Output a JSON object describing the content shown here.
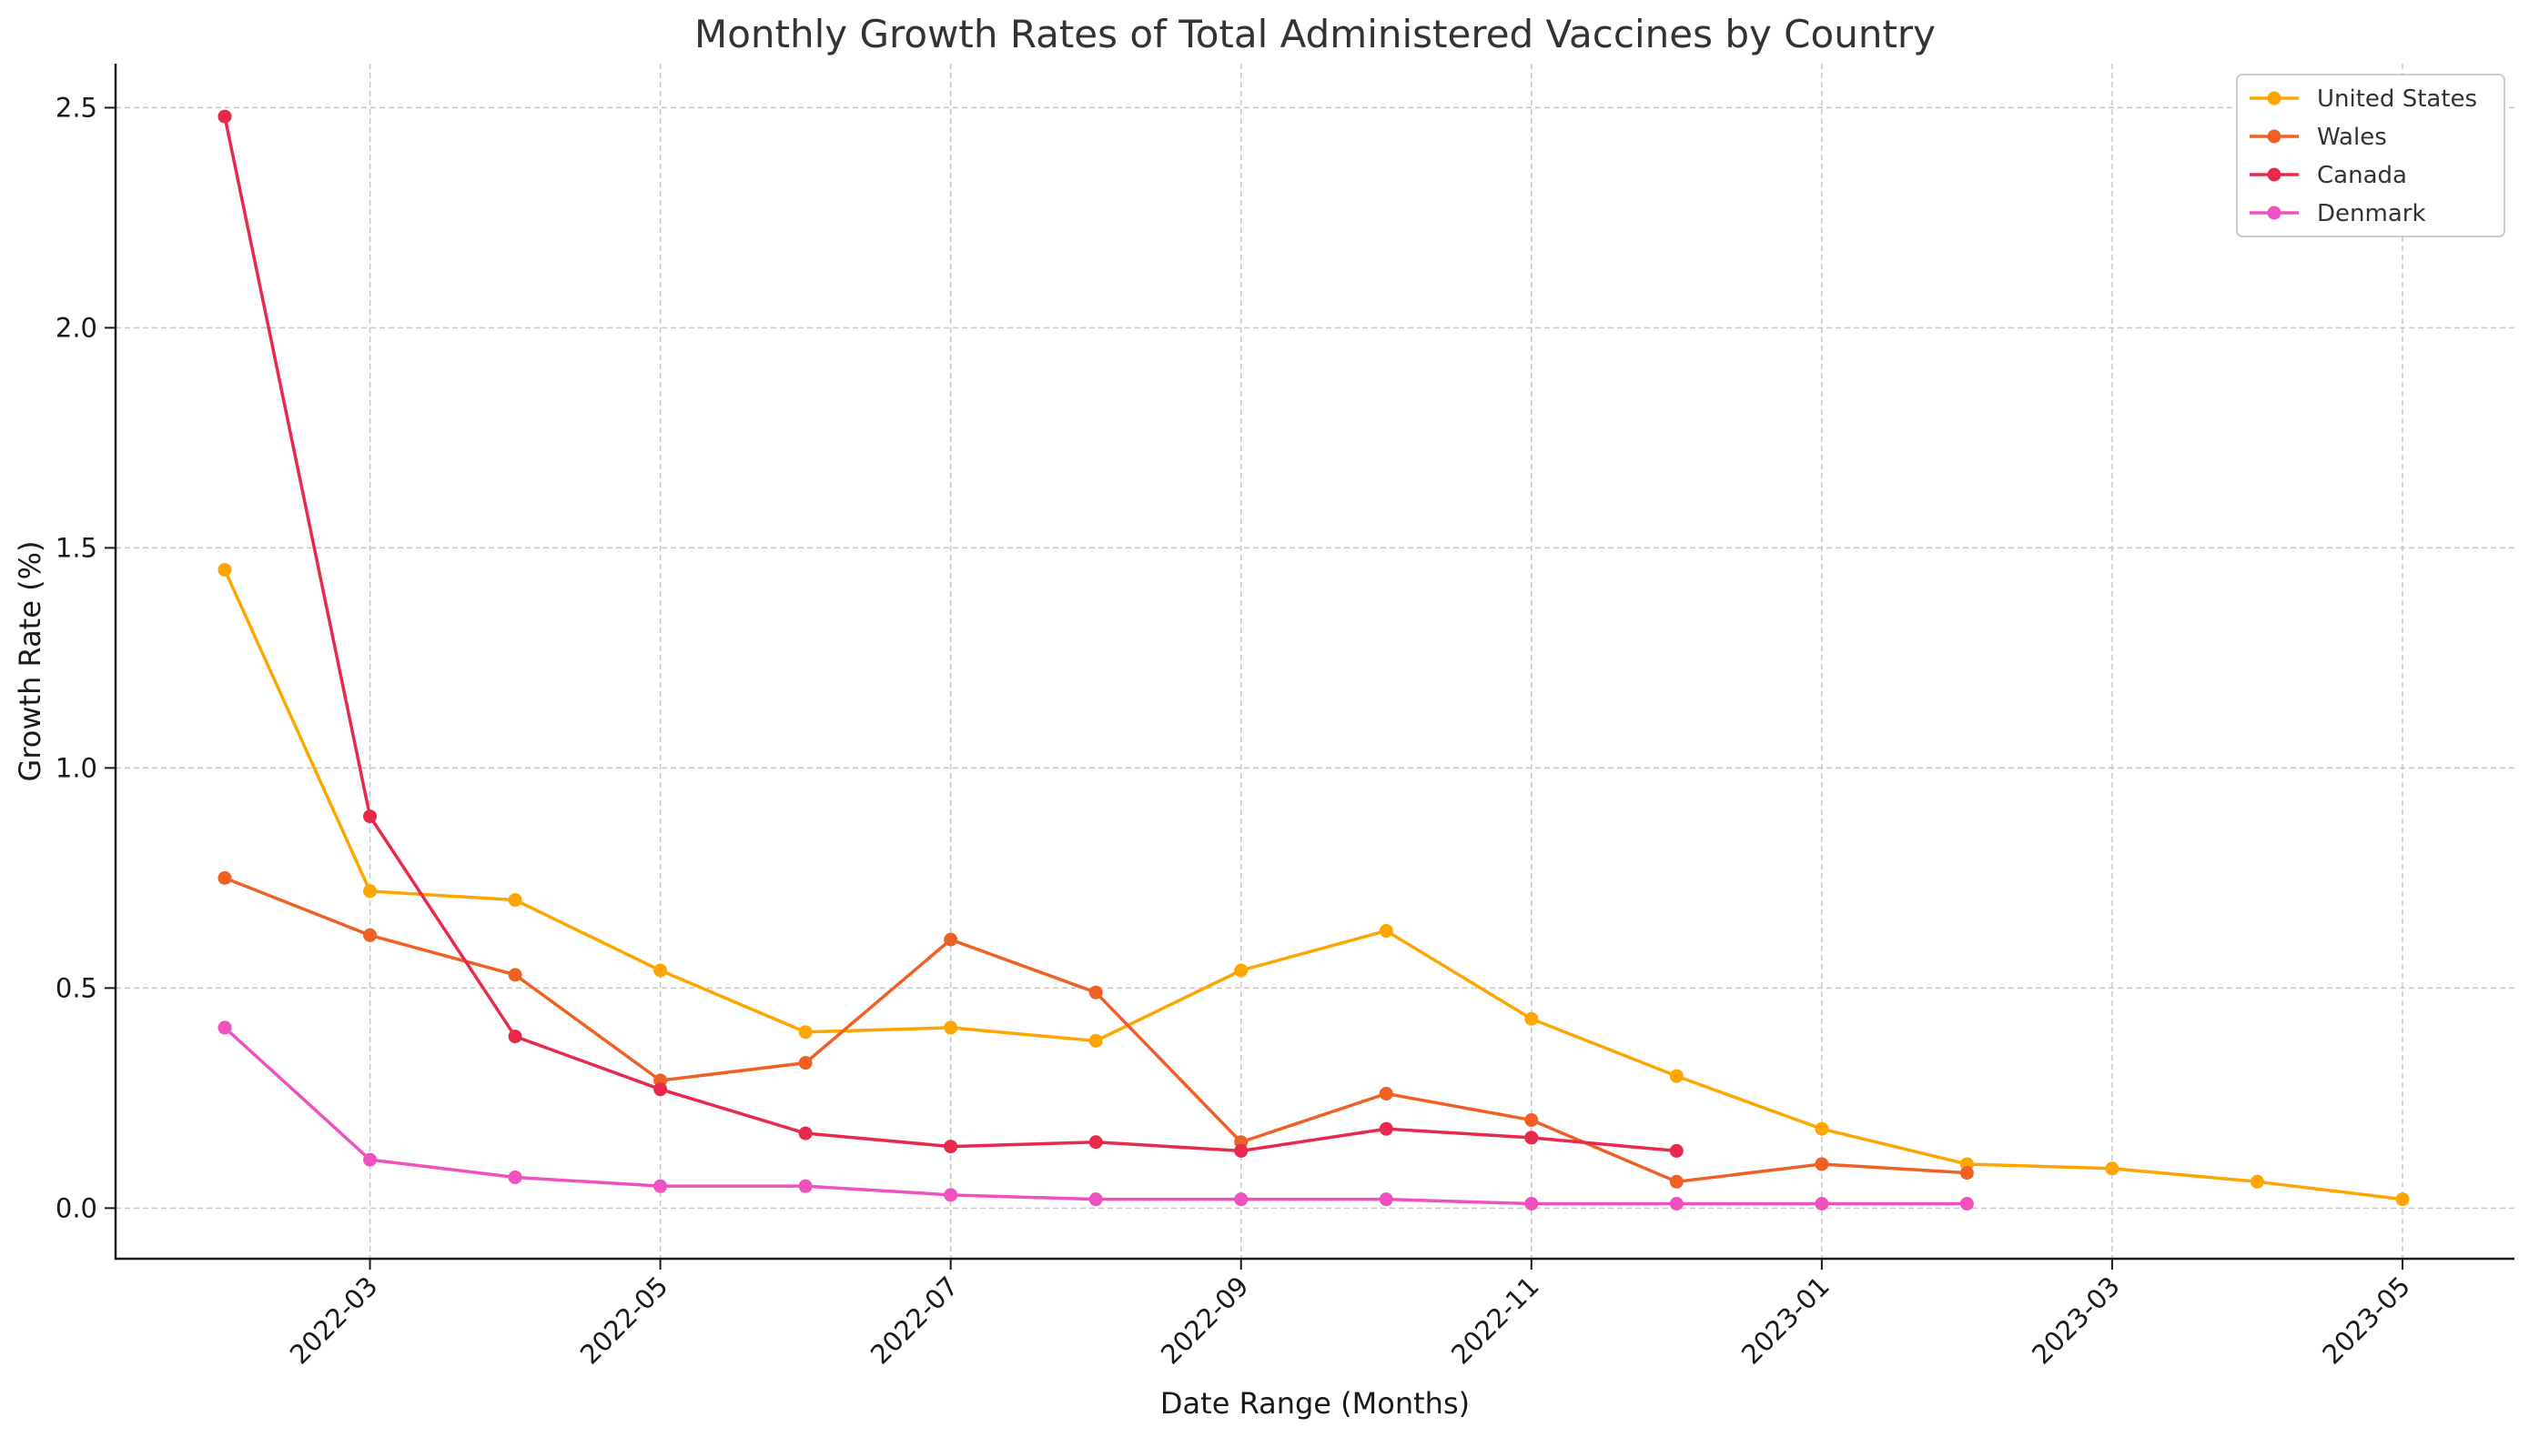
{
  "chart_data": {
    "type": "line",
    "title": "Monthly Growth Rates of Total Administered Vaccines by Country",
    "xlabel": "Date Range (Months)",
    "ylabel": "Growth Rate (%)",
    "x": [
      "2022-02",
      "2022-03",
      "2022-04",
      "2022-05",
      "2022-06",
      "2022-07",
      "2022-08",
      "2022-09",
      "2022-10",
      "2022-11",
      "2022-12",
      "2023-01",
      "2023-02",
      "2023-03",
      "2023-04",
      "2023-05"
    ],
    "x_ticks": [
      "2022-03",
      "2022-05",
      "2022-07",
      "2022-09",
      "2022-11",
      "2023-01",
      "2023-03",
      "2023-05"
    ],
    "y_ticks": [
      "0.0",
      "0.5",
      "1.0",
      "1.5",
      "2.0",
      "2.5"
    ],
    "ylim": [
      -0.115,
      2.6
    ],
    "grid": true,
    "legend_position": "top-right",
    "series": [
      {
        "name": "United States",
        "color": "#FFA500",
        "x": [
          "2022-02",
          "2022-03",
          "2022-04",
          "2022-05",
          "2022-06",
          "2022-07",
          "2022-08",
          "2022-09",
          "2022-10",
          "2022-11",
          "2022-12",
          "2023-01",
          "2023-02",
          "2023-03",
          "2023-04",
          "2023-05"
        ],
        "values": [
          1.45,
          0.72,
          0.7,
          0.54,
          0.4,
          0.41,
          0.38,
          0.54,
          0.63,
          0.43,
          0.3,
          0.18,
          0.1,
          0.09,
          0.06,
          0.02
        ]
      },
      {
        "name": "Wales",
        "color": "#F06025",
        "x": [
          "2022-02",
          "2022-03",
          "2022-04",
          "2022-05",
          "2022-06",
          "2022-07",
          "2022-08",
          "2022-09",
          "2022-10",
          "2022-11",
          "2022-12",
          "2023-01",
          "2023-02"
        ],
        "values": [
          0.75,
          0.62,
          0.53,
          0.29,
          0.33,
          0.61,
          0.49,
          0.15,
          0.26,
          0.2,
          0.06,
          0.1,
          0.08
        ]
      },
      {
        "name": "Canada",
        "color": "#E8294B",
        "x": [
          "2022-02",
          "2022-03",
          "2022-04",
          "2022-05",
          "2022-06",
          "2022-07",
          "2022-08",
          "2022-09",
          "2022-10",
          "2022-11",
          "2022-12"
        ],
        "values": [
          2.48,
          0.89,
          0.39,
          0.27,
          0.17,
          0.14,
          0.15,
          0.13,
          0.18,
          0.16,
          0.13
        ]
      },
      {
        "name": "Denmark",
        "color": "#F050C0",
        "x": [
          "2022-02",
          "2022-03",
          "2022-04",
          "2022-05",
          "2022-06",
          "2022-07",
          "2022-08",
          "2022-09",
          "2022-10",
          "2022-11",
          "2022-12",
          "2023-01",
          "2023-02"
        ],
        "values": [
          0.41,
          0.11,
          0.07,
          0.05,
          0.05,
          0.03,
          0.02,
          0.02,
          0.02,
          0.01,
          0.01,
          0.01,
          0.01
        ]
      }
    ]
  }
}
